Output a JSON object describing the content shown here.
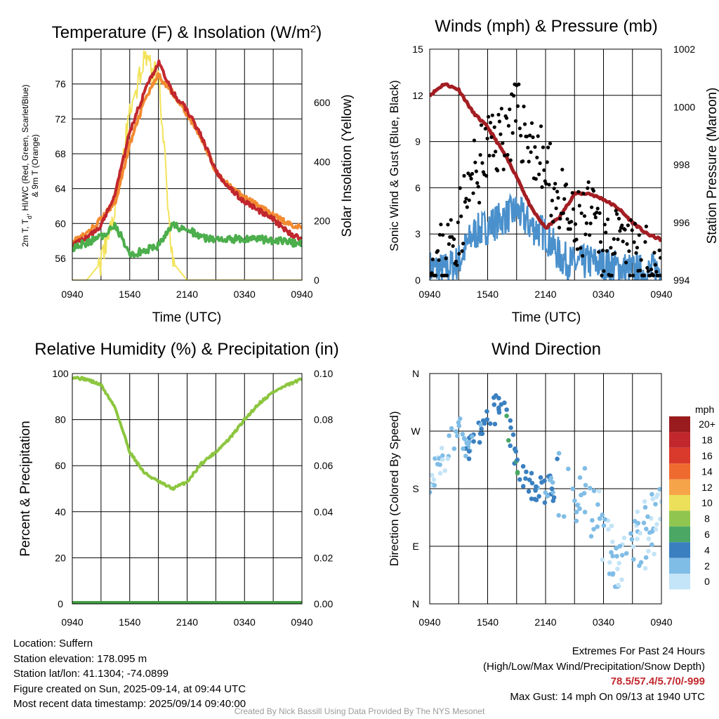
{
  "panels": {
    "temp": {
      "title": "Temperature (F) & Insolation (W/m",
      "title_sup": "2",
      "title_end": ")",
      "ylabel_lines": [
        "2m T, T",
        "d",
        ", HI/WC (Red, Green, Scarlet/Blue)",
        "& 9m T (Orange)"
      ],
      "y2label": "Solar Insolation (Yellow)",
      "xlabel": "Time (UTC)"
    },
    "wind": {
      "title": "Winds (mph) & Pressure (mb)",
      "ylabel": "Sonic Wind & Gust (Blue, Black)",
      "y2label": "Station Pressure (Maroon)",
      "xlabel": "Time (UTC)"
    },
    "rh": {
      "title": "Relative Humidity (%) & Precipitation (in)",
      "ylabel": "Percent & Precipitation"
    },
    "dir": {
      "title": "Wind Direction",
      "ylabel": "Direction (Colored By Speed)",
      "colorbar_title": "mph",
      "colorbar_labels": [
        "20+",
        "18",
        "16",
        "14",
        "12",
        "10",
        "8",
        "6",
        "4",
        "2",
        "0"
      ],
      "colorbar_colors": [
        "#9a1b1e",
        "#c1272d",
        "#d93a2b",
        "#ef6a2f",
        "#f6a44a",
        "#ece05a",
        "#90c64f",
        "#4aa864",
        "#3a80c0",
        "#80bde6",
        "#c4e4f7"
      ]
    }
  },
  "info": {
    "location": "Location: Suffern",
    "elevation": "Station elevation: 178.095 m",
    "latlon": "Station lat/lon: 41.1304; -74.0899",
    "created": "Figure created on Sun, 2025-09-14, at 09:44 UTC",
    "recent": "Most recent data timestamp: 2025/09/14 09:40:00",
    "extremes_title": "Extremes For Past 24 Hours",
    "extremes_sub": "(High/Low/Max Wind/Precipitation/Snow Depth)",
    "extremes_values": "78.5/57.4/5.7/0/-999",
    "max_gust": "Max Gust: 14 mph On 09/13 at 1940 UTC"
  },
  "credit": "Created By Nick Bassill Using Data Provided By The NYS Mesonet",
  "chart_data": [
    {
      "type": "line",
      "title": "Temperature (F) & Insolation (W/m2)",
      "xlabel": "Time (UTC)",
      "ylabel": "2m T, Td, HI/WC (Red, Green, Scarlet/Blue) & 9m T (Orange)",
      "y2label": "Solar Insolation (Yellow)",
      "x": [
        "0940",
        "1100",
        "1240",
        "1400",
        "1540",
        "1700",
        "1840",
        "2000",
        "2140",
        "2300",
        "0040",
        "0220",
        "0340",
        "0500",
        "0620",
        "0800",
        "0940"
      ],
      "xticks": [
        "0940",
        "1540",
        "2140",
        "0340",
        "0940"
      ],
      "ylim": [
        53.5,
        80
      ],
      "yticks": [
        56,
        60,
        64,
        68,
        72,
        76
      ],
      "y2lim": [
        0,
        780
      ],
      "y2ticks": [
        0,
        200,
        400,
        600
      ],
      "series": [
        {
          "name": "2m T",
          "color": "#c1272d",
          "axis": "left",
          "values": [
            57.5,
            58.3,
            59.8,
            63.5,
            70.5,
            75.0,
            78.5,
            75.0,
            73.0,
            70.0,
            66.0,
            64.0,
            62.5,
            61.5,
            60.5,
            59.0,
            58.2
          ]
        },
        {
          "name": "9m T",
          "color": "#f28a30",
          "axis": "left",
          "values": [
            58.0,
            58.8,
            60.5,
            62.5,
            69.0,
            74.0,
            77.0,
            75.0,
            72.5,
            69.8,
            66.0,
            64.2,
            63.0,
            62.0,
            61.0,
            60.0,
            59.5
          ]
        },
        {
          "name": "Td",
          "color": "#4cae4c",
          "axis": "left",
          "values": [
            57.2,
            57.8,
            58.5,
            59.8,
            56.5,
            56.8,
            57.5,
            59.8,
            59.3,
            58.5,
            58.0,
            58.2,
            58.3,
            58.2,
            58.0,
            57.9,
            57.6
          ]
        },
        {
          "name": "Solar Insolation",
          "color": "#f2e35a",
          "axis": "right",
          "values": [
            0,
            0,
            60,
            260,
            560,
            740,
            690,
            60,
            0,
            0,
            0,
            0,
            0,
            0,
            0,
            0,
            0
          ]
        }
      ]
    },
    {
      "type": "scatter",
      "title": "Winds (mph) & Pressure (mb)",
      "xlabel": "Time (UTC)",
      "ylabel": "Sonic Wind & Gust (Blue, Black)",
      "y2label": "Station Pressure (Maroon)",
      "x": [
        "0940",
        "1100",
        "1240",
        "1400",
        "1540",
        "1700",
        "1840",
        "2000",
        "2140",
        "2300",
        "0040",
        "0220",
        "0340",
        "0500",
        "0620",
        "0800",
        "0940"
      ],
      "xticks": [
        "0940",
        "1540",
        "2140",
        "0340",
        "0940"
      ],
      "ylim": [
        0,
        15
      ],
      "yticks": [
        0,
        3,
        6,
        9,
        12,
        15
      ],
      "y2lim": [
        994,
        1002
      ],
      "y2ticks": [
        994,
        996,
        998,
        1000,
        1002
      ],
      "series": [
        {
          "name": "Sonic Wind",
          "color": "#4a90cc",
          "axis": "left",
          "values": [
            0.8,
            0.6,
            1.2,
            3.0,
            3.5,
            4.0,
            4.5,
            3.5,
            3.0,
            1.5,
            1.0,
            1.2,
            1.0,
            0.8,
            0.6,
            0.5,
            0.8
          ]
        },
        {
          "name": "Gust",
          "color": "#000000",
          "axis": "left",
          "values": [
            1.0,
            1.5,
            3.5,
            6.5,
            8.5,
            9.5,
            10.5,
            9.0,
            7.0,
            5.0,
            3.0,
            4.0,
            2.5,
            2.0,
            1.5,
            1.0,
            1.0
          ]
        },
        {
          "name": "Station Pressure",
          "color": "#a31e23",
          "axis": "right",
          "values": [
            1000.4,
            1000.8,
            1000.6,
            999.8,
            999.3,
            998.5,
            997.6,
            996.5,
            995.8,
            996.2,
            997.0,
            997.0,
            996.8,
            996.5,
            996.0,
            995.6,
            995.4
          ]
        }
      ]
    },
    {
      "type": "line",
      "title": "Relative Humidity (%) & Precipitation (in)",
      "ylabel": "Percent & Precipitation",
      "x": [
        "0940",
        "1100",
        "1240",
        "1400",
        "1540",
        "1700",
        "1840",
        "2000",
        "2140",
        "2300",
        "0040",
        "0220",
        "0340",
        "0500",
        "0620",
        "0800",
        "0940"
      ],
      "xticks": [
        "0940",
        "1540",
        "2140",
        "0340",
        "0940"
      ],
      "ylim": [
        0,
        100
      ],
      "yticks": [
        0,
        20,
        40,
        60,
        80,
        100
      ],
      "y2lim": [
        0,
        0.1
      ],
      "y2ticks": [
        0.0,
        0.02,
        0.04,
        0.06,
        0.08,
        0.1
      ],
      "series": [
        {
          "name": "Relative Humidity",
          "color": "#8cc63f",
          "axis": "left",
          "values": [
            98.5,
            97.5,
            95.0,
            85.0,
            66.0,
            57.0,
            53.0,
            50.0,
            53.0,
            61.0,
            66.0,
            72.0,
            80.0,
            87.0,
            92.0,
            95.0,
            97.5
          ]
        },
        {
          "name": "Precipitation",
          "color": "#3ea040",
          "axis": "right",
          "values": [
            0,
            0,
            0,
            0,
            0,
            0,
            0,
            0,
            0,
            0,
            0,
            0,
            0,
            0,
            0,
            0,
            0
          ]
        }
      ]
    },
    {
      "type": "scatter",
      "title": "Wind Direction",
      "ylabel": "Direction (Colored By Speed)",
      "x": [
        "0940",
        "1100",
        "1240",
        "1400",
        "1540",
        "1700",
        "1840",
        "2000",
        "2140",
        "2300",
        "0040",
        "0220",
        "0340",
        "0500",
        "0620",
        "0800",
        "0940"
      ],
      "xticks": [
        "0940",
        "1540",
        "2140",
        "0340",
        "0940"
      ],
      "yticks": [
        "N",
        "E",
        "S",
        "W",
        "N"
      ],
      "ylim": [
        0,
        360
      ],
      "series": [
        {
          "name": "Wind Direction (deg)",
          "values": [
            190,
            230,
            270,
            240,
            300,
            305,
            230,
            180,
            180,
            190,
            180,
            150,
            120,
            60,
            90,
            110,
            150
          ]
        },
        {
          "name": "Wind Speed (mph)",
          "values": [
            0.8,
            0.6,
            1.2,
            3.0,
            3.5,
            4.0,
            4.5,
            3.5,
            3.0,
            1.5,
            1.0,
            1.2,
            1.0,
            0.8,
            0.6,
            0.5,
            0.8
          ]
        }
      ]
    }
  ]
}
